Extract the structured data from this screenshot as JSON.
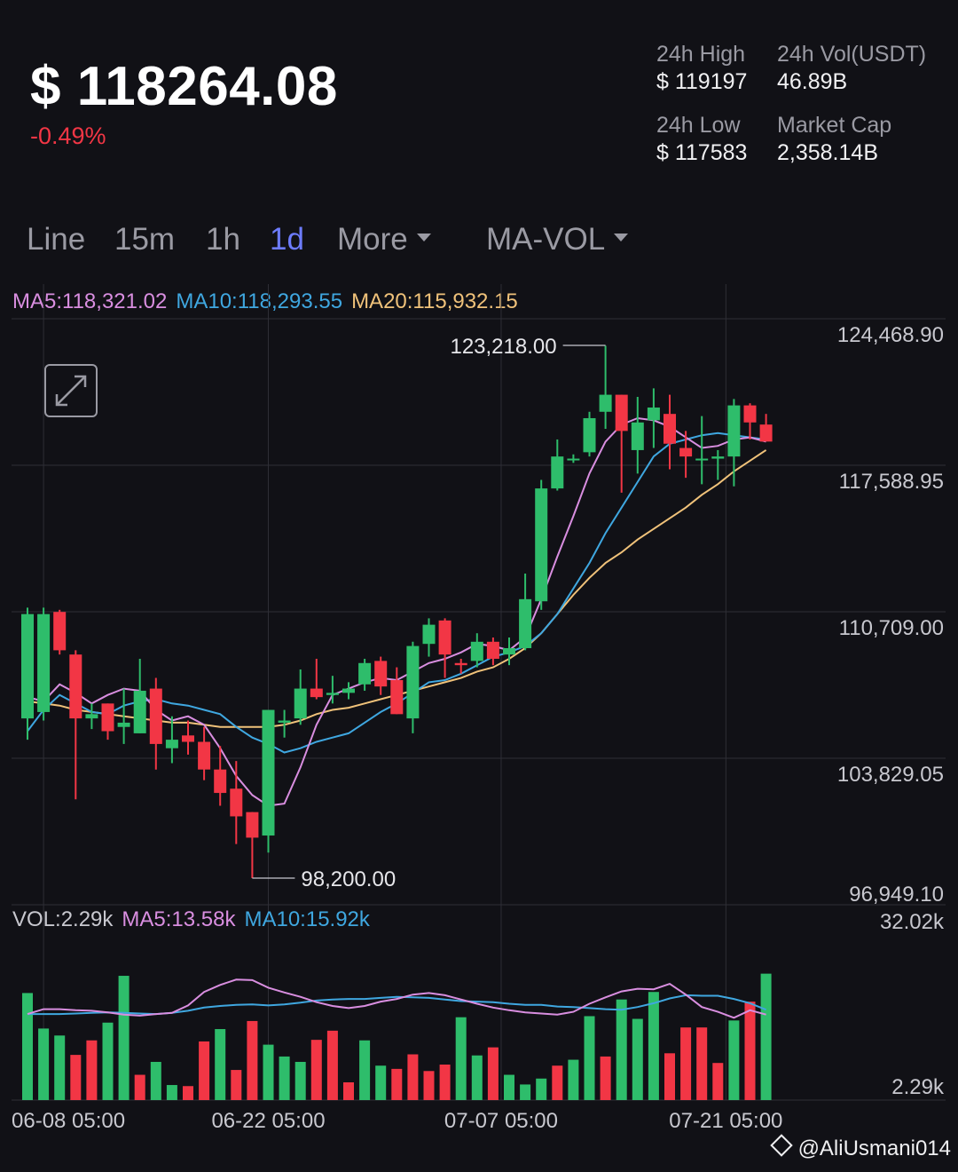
{
  "header": {
    "price": "$ 118264.08",
    "change": "-0.49%",
    "stats": [
      {
        "label": "24h High",
        "value": "$ 119197"
      },
      {
        "label": "24h Vol(USDT)",
        "value": "46.89B"
      },
      {
        "label": "24h Low",
        "value": "$ 117583"
      },
      {
        "label": "Market Cap",
        "value": "2,358.14B"
      }
    ]
  },
  "tabs": [
    "Line",
    "15m",
    "1h",
    "1d",
    "More",
    "MA-VOL"
  ],
  "active_tab": "1d",
  "legend": {
    "ma5": "MA5:118,321.02",
    "ma10": "MA10:118,293.55",
    "ma20": "MA20:115,932.15"
  },
  "vol_legend": {
    "vol": "VOL:2.29k",
    "ma5": "MA5:13.58k",
    "ma10": "MA10:15.92k"
  },
  "watermark": "@AliUsmani014",
  "colors": {
    "up": "#2ebd6b",
    "down": "#f23645",
    "ma5": "#d98ee0",
    "ma10": "#3fa7e0",
    "ma20": "#f0c27a",
    "active_tab": "#6d7cff",
    "grid": "#2e2e36"
  },
  "chart_data": {
    "type": "candlestick",
    "price_axis": {
      "ylim": [
        96949.1,
        124468.9
      ],
      "tick_labels": [
        "124,468.90",
        "117,588.95",
        "110,709.00",
        "103,829.05",
        "96,949.10"
      ],
      "tick_values": [
        124468.9,
        117588.95,
        110709.0,
        103829.05,
        96949.1
      ]
    },
    "x_tick_labels": [
      "06-08 05:00",
      "06-22 05:00",
      "07-07 05:00",
      "07-21 05:00"
    ],
    "x_tick_index": [
      1,
      15,
      29.5,
      43.5
    ],
    "annotations": [
      {
        "label": "123,218.00",
        "index": 36,
        "value": 123218.0
      },
      {
        "label": "98,200.00",
        "index": 14,
        "value": 98200.0
      }
    ],
    "candles": [
      {
        "o": 105700,
        "h": 110900,
        "l": 104700,
        "c": 110600
      },
      {
        "o": 106000,
        "h": 110900,
        "l": 105600,
        "c": 110600
      },
      {
        "o": 110700,
        "h": 110800,
        "l": 108700,
        "c": 108900
      },
      {
        "o": 108700,
        "h": 108900,
        "l": 101900,
        "c": 105700
      },
      {
        "o": 105700,
        "h": 106400,
        "l": 105200,
        "c": 105900
      },
      {
        "o": 106400,
        "h": 106400,
        "l": 104700,
        "c": 105100
      },
      {
        "o": 105300,
        "h": 107100,
        "l": 104500,
        "c": 105500
      },
      {
        "o": 105000,
        "h": 108500,
        "l": 105000,
        "c": 107000
      },
      {
        "o": 107100,
        "h": 107600,
        "l": 103300,
        "c": 104500
      },
      {
        "o": 104300,
        "h": 105800,
        "l": 103600,
        "c": 104700
      },
      {
        "o": 104900,
        "h": 105600,
        "l": 104000,
        "c": 104600
      },
      {
        "o": 104600,
        "h": 105300,
        "l": 102800,
        "c": 103300
      },
      {
        "o": 103300,
        "h": 104400,
        "l": 101600,
        "c": 102200
      },
      {
        "o": 102400,
        "h": 103700,
        "l": 99800,
        "c": 101100
      },
      {
        "o": 101300,
        "h": 101300,
        "l": 98200,
        "c": 100100
      },
      {
        "o": 100200,
        "h": 105900,
        "l": 99400,
        "c": 106100
      },
      {
        "o": 105500,
        "h": 106100,
        "l": 104800,
        "c": 105600
      },
      {
        "o": 105700,
        "h": 108000,
        "l": 105400,
        "c": 107100
      },
      {
        "o": 107100,
        "h": 108500,
        "l": 106600,
        "c": 106700
      },
      {
        "o": 106800,
        "h": 107700,
        "l": 106400,
        "c": 106900
      },
      {
        "o": 106900,
        "h": 107400,
        "l": 106600,
        "c": 107100
      },
      {
        "o": 107300,
        "h": 108500,
        "l": 107000,
        "c": 108300
      },
      {
        "o": 108400,
        "h": 108600,
        "l": 106800,
        "c": 107200
      },
      {
        "o": 107500,
        "h": 108100,
        "l": 105900,
        "c": 105900
      },
      {
        "o": 105700,
        "h": 109300,
        "l": 105000,
        "c": 109100
      },
      {
        "o": 109200,
        "h": 110400,
        "l": 108600,
        "c": 110100
      },
      {
        "o": 110300,
        "h": 110400,
        "l": 107600,
        "c": 108700
      },
      {
        "o": 108300,
        "h": 108500,
        "l": 107800,
        "c": 108200
      },
      {
        "o": 108400,
        "h": 109700,
        "l": 108100,
        "c": 109300
      },
      {
        "o": 109300,
        "h": 109500,
        "l": 108200,
        "c": 108500
      },
      {
        "o": 108700,
        "h": 109500,
        "l": 108200,
        "c": 109000
      },
      {
        "o": 109000,
        "h": 112500,
        "l": 108900,
        "c": 111300
      },
      {
        "o": 111200,
        "h": 116900,
        "l": 110800,
        "c": 116500
      },
      {
        "o": 116500,
        "h": 118800,
        "l": 116400,
        "c": 118000
      },
      {
        "o": 117900,
        "h": 118100,
        "l": 117700,
        "c": 117900
      },
      {
        "o": 118200,
        "h": 120100,
        "l": 118000,
        "c": 119800
      },
      {
        "o": 120100,
        "h": 123200,
        "l": 119300,
        "c": 120900
      },
      {
        "o": 120900,
        "h": 120900,
        "l": 116300,
        "c": 119200
      },
      {
        "o": 118300,
        "h": 120800,
        "l": 117200,
        "c": 119600
      },
      {
        "o": 119700,
        "h": 121200,
        "l": 118400,
        "c": 120300
      },
      {
        "o": 120000,
        "h": 120900,
        "l": 117400,
        "c": 118600
      },
      {
        "o": 118400,
        "h": 119200,
        "l": 117000,
        "c": 118000
      },
      {
        "o": 117900,
        "h": 119900,
        "l": 116700,
        "c": 117900
      },
      {
        "o": 117900,
        "h": 118300,
        "l": 116900,
        "c": 118000
      },
      {
        "o": 118000,
        "h": 120700,
        "l": 116600,
        "c": 120400
      },
      {
        "o": 120400,
        "h": 120500,
        "l": 118800,
        "c": 119600
      },
      {
        "o": 119500,
        "h": 120000,
        "l": 118800,
        "c": 118700
      }
    ],
    "ma5": [
      106700,
      106500,
      107300,
      106900,
      106400,
      106800,
      107100,
      107000,
      106100,
      105600,
      105800,
      105400,
      104300,
      103000,
      102100,
      101600,
      101700,
      103400,
      105400,
      106800,
      107100,
      107400,
      107600,
      107500,
      107900,
      108300,
      108500,
      108800,
      109200,
      109100,
      108900,
      109500,
      111300,
      113300,
      115200,
      117200,
      118700,
      119500,
      119800,
      119700,
      119400,
      118900,
      118400,
      118500,
      118800,
      118900,
      118700
    ],
    "ma10": [
      105100,
      106100,
      106800,
      106400,
      106000,
      105900,
      106300,
      106500,
      106600,
      106400,
      106300,
      106100,
      105900,
      105300,
      104800,
      104500,
      104100,
      104300,
      104600,
      104800,
      105000,
      105500,
      106000,
      106400,
      106900,
      107400,
      107500,
      107800,
      108200,
      108600,
      108800,
      109100,
      109700,
      110600,
      111800,
      113000,
      114400,
      115600,
      116800,
      118000,
      118600,
      118800,
      119000,
      119100,
      119000,
      118900,
      118800
    ],
    "ma20": [
      106500,
      106400,
      106300,
      106100,
      106000,
      105900,
      105800,
      105700,
      105600,
      105500,
      105500,
      105400,
      105300,
      105300,
      105300,
      105300,
      105400,
      105600,
      105900,
      106100,
      106200,
      106400,
      106600,
      106800,
      107000,
      107200,
      107400,
      107600,
      107900,
      108100,
      108500,
      109000,
      109700,
      110600,
      111500,
      112300,
      113000,
      113500,
      114100,
      114600,
      115100,
      115600,
      116200,
      116700,
      117300,
      117800,
      118300
    ],
    "volume_axis": {
      "ylim": [
        2290,
        32020
      ],
      "tick_labels": [
        "32.02k",
        "2.29k"
      ]
    },
    "volume": [
      {
        "v": 19900,
        "up": true
      },
      {
        "v": 13300,
        "up": true
      },
      {
        "v": 12000,
        "up": true
      },
      {
        "v": 8400,
        "up": false
      },
      {
        "v": 11100,
        "up": false
      },
      {
        "v": 14400,
        "up": true
      },
      {
        "v": 23100,
        "up": true
      },
      {
        "v": 4700,
        "up": false
      },
      {
        "v": 7100,
        "up": true
      },
      {
        "v": 2800,
        "up": true
      },
      {
        "v": 2600,
        "up": false
      },
      {
        "v": 10900,
        "up": false
      },
      {
        "v": 13200,
        "up": true
      },
      {
        "v": 5600,
        "up": false
      },
      {
        "v": 14700,
        "up": false
      },
      {
        "v": 10300,
        "up": true
      },
      {
        "v": 8100,
        "up": true
      },
      {
        "v": 7100,
        "up": true
      },
      {
        "v": 11200,
        "up": false
      },
      {
        "v": 12900,
        "up": false
      },
      {
        "v": 3300,
        "up": false
      },
      {
        "v": 11100,
        "up": true
      },
      {
        "v": 6400,
        "up": true
      },
      {
        "v": 5800,
        "up": false
      },
      {
        "v": 8500,
        "up": false
      },
      {
        "v": 5400,
        "up": false
      },
      {
        "v": 6600,
        "up": false
      },
      {
        "v": 15400,
        "up": true
      },
      {
        "v": 8300,
        "up": true
      },
      {
        "v": 9800,
        "up": false
      },
      {
        "v": 4700,
        "up": true
      },
      {
        "v": 2900,
        "up": true
      },
      {
        "v": 4000,
        "up": true
      },
      {
        "v": 6400,
        "up": false
      },
      {
        "v": 7500,
        "up": true
      },
      {
        "v": 15600,
        "up": true
      },
      {
        "v": 8100,
        "up": false
      },
      {
        "v": 18700,
        "up": true
      },
      {
        "v": 15100,
        "up": true
      },
      {
        "v": 20100,
        "up": true
      },
      {
        "v": 8700,
        "up": false
      },
      {
        "v": 13500,
        "up": false
      },
      {
        "v": 13500,
        "up": false
      },
      {
        "v": 6900,
        "up": false
      },
      {
        "v": 14800,
        "up": true
      },
      {
        "v": 18300,
        "up": false
      },
      {
        "v": 23500,
        "up": true
      }
    ],
    "vol_ma5": [
      16000,
      16900,
      16900,
      16700,
      16600,
      16300,
      15900,
      15700,
      16000,
      16200,
      17600,
      20100,
      21400,
      22400,
      22300,
      20900,
      20000,
      19200,
      18200,
      17500,
      17100,
      17500,
      18300,
      18800,
      19600,
      19900,
      19500,
      18700,
      17900,
      17200,
      16700,
      16300,
      16100,
      15900,
      16400,
      17900,
      19100,
      20200,
      20700,
      20600,
      21600,
      19600,
      17300,
      16400,
      15300,
      16700,
      15900
    ],
    "vol_ma10": [
      16000,
      16000,
      16000,
      16100,
      16200,
      16300,
      16200,
      16100,
      16000,
      16200,
      16600,
      17200,
      17500,
      17700,
      17800,
      17600,
      17800,
      18100,
      18500,
      18700,
      18800,
      18800,
      19000,
      19200,
      19100,
      19000,
      18700,
      18400,
      18300,
      18200,
      17900,
      17700,
      17700,
      17400,
      17300,
      17100,
      16900,
      16800,
      17300,
      18000,
      18900,
      19500,
      19400,
      19400,
      18800,
      18000,
      16800
    ]
  }
}
